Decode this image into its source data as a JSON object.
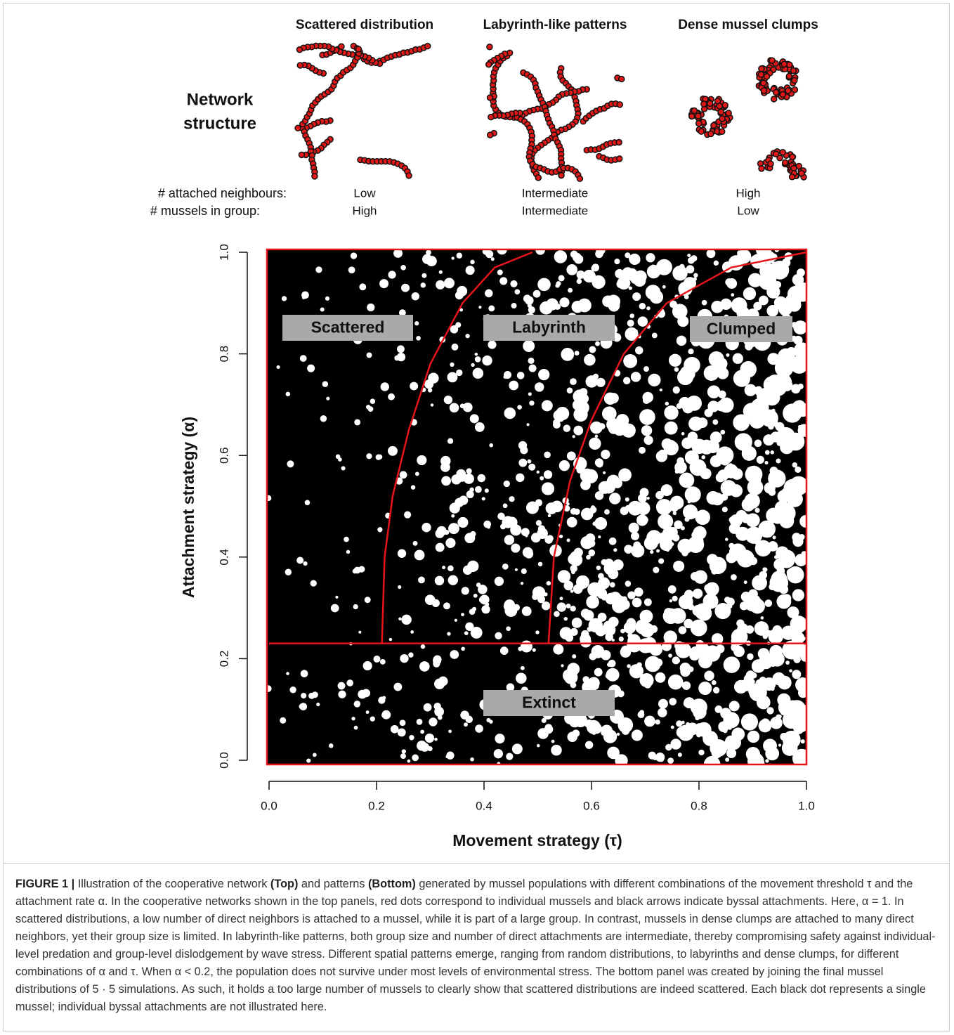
{
  "top": {
    "row_label_1": "Network",
    "row_label_2": "structure",
    "neighbours_label": "# attached neighbours:",
    "group_label": "# mussels in group:",
    "panels": [
      {
        "title": "Scattered distribution",
        "neighbours": "Low",
        "group": "High"
      },
      {
        "title": "Labyrinth-like patterns",
        "neighbours": "Intermediate",
        "group": "Intermediate"
      },
      {
        "title": "Dense mussel clumps",
        "neighbours": "High",
        "group": "Low"
      }
    ]
  },
  "chart_data": {
    "type": "line",
    "xlabel": "Movement strategy (τ)",
    "ylabel": "Attachment strategy (α)",
    "xlim": [
      0,
      1
    ],
    "ylim": [
      0,
      1
    ],
    "xticks": [
      {
        "value": 0,
        "label": "0.0"
      },
      {
        "value": 0.2,
        "label": "0.2"
      },
      {
        "value": 0.4,
        "label": "0.4"
      },
      {
        "value": 0.6,
        "label": "0.6"
      },
      {
        "value": 0.8,
        "label": "0.8"
      },
      {
        "value": 1,
        "label": "1.0"
      }
    ],
    "yticks": [
      {
        "value": 0,
        "label": "0.0"
      },
      {
        "value": 0.2,
        "label": "0.2"
      },
      {
        "value": 0.4,
        "label": "0.4"
      },
      {
        "value": 0.6,
        "label": "0.6"
      },
      {
        "value": 0.8,
        "label": "0.8"
      },
      {
        "value": 1,
        "label": "1.0"
      }
    ],
    "annotations": [
      "Scattered",
      "Labyrinth",
      "Clumped",
      "Extinct"
    ],
    "series": [
      {
        "color": "#e8141c",
        "x": [
          0,
          1
        ],
        "values": [
          0.23,
          0.23
        ]
      },
      {
        "color": "#e8141c",
        "x": [
          0.21,
          0.215,
          0.23,
          0.26,
          0.3,
          0.36,
          0.42,
          0.49
        ],
        "values": [
          0.23,
          0.4,
          0.52,
          0.65,
          0.78,
          0.9,
          0.97,
          1
        ]
      },
      {
        "color": "#e8141c",
        "x": [
          0.52,
          0.53,
          0.56,
          0.6,
          0.66,
          0.74,
          0.86,
          1
        ],
        "values": [
          0.23,
          0.4,
          0.55,
          0.67,
          0.8,
          0.9,
          0.97,
          1
        ]
      }
    ]
  },
  "caption": {
    "label": "FIGURE 1 |",
    "text_1": " Illustration of the cooperative network ",
    "top": "(Top)",
    "text_2": " and patterns ",
    "bottom": "(Bottom)",
    "text_3": " generated by mussel populations with different combinations of the movement threshold τ and the attachment rate α. In the cooperative networks shown in the top panels, red dots correspond to individual mussels and black arrows indicate byssal attachments. Here, α = 1. In scattered distributions, a low number of direct neighbors is attached to a mussel, while it is part of a large group. In contrast, mussels in dense clumps are attached to many direct neighbors, yet their group size is limited. In labyrinth-like patterns, both group size and number of direct attachments are intermediate, thereby compromising safety against individual-level predation and group-level dislodgement by wave stress. Different spatial patterns emerge, ranging from random distributions, to labyrinths and dense clumps, for different combinations of α and τ. When α < 0.2, the population does not survive under most levels of environmental stress. The bottom panel was created by joining the final mussel distributions of 5 · 5 simulations. As such, it holds a too large number of mussels to clearly show that scattered distributions are indeed scattered. Each black dot represents a single mussel; individual byssal attachments are not illustrated here."
  }
}
